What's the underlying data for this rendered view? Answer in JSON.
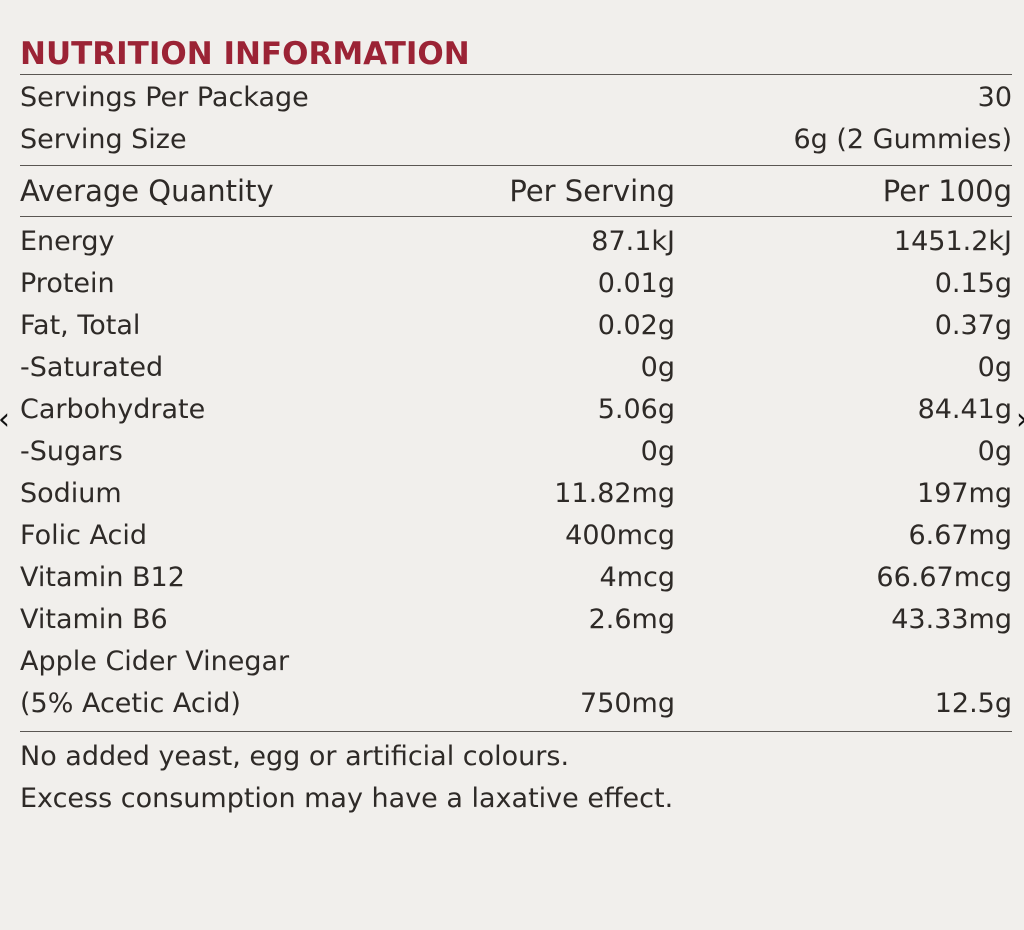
{
  "title": "NUTRITION INFORMATION",
  "servings": {
    "per_package_label": "Servings Per Package",
    "per_package_value": "30",
    "size_label": "Serving Size",
    "size_value": "6g (2 Gummies)"
  },
  "header": {
    "col1": "Average Quantity",
    "col2": "Per Serving",
    "col3": "Per 100g"
  },
  "rows": [
    {
      "name": "Energy",
      "per_serving": "87.1kJ",
      "per_100g": "1451.2kJ"
    },
    {
      "name": "Protein",
      "per_serving": "0.01g",
      "per_100g": "0.15g"
    },
    {
      "name": "Fat, Total",
      "per_serving": "0.02g",
      "per_100g": "0.37g"
    },
    {
      "name": "-Saturated",
      "per_serving": "0g",
      "per_100g": "0g"
    },
    {
      "name": "Carbohydrate",
      "per_serving": "5.06g",
      "per_100g": "84.41g"
    },
    {
      "name": "-Sugars",
      "per_serving": "0g",
      "per_100g": "0g"
    },
    {
      "name": "Sodium",
      "per_serving": "11.82mg",
      "per_100g": "197mg"
    },
    {
      "name": "Folic Acid",
      "per_serving": "400mcg",
      "per_100g": "6.67mg"
    },
    {
      "name": "Vitamin B12",
      "per_serving": "4mcg",
      "per_100g": "66.67mcg"
    },
    {
      "name": "Vitamin B6",
      "per_serving": "2.6mg",
      "per_100g": "43.33mg"
    }
  ],
  "acv": {
    "line1": "Apple Cider Vinegar",
    "line2": "(5% Acetic Acid)",
    "per_serving": "750mg",
    "per_100g": "12.5g"
  },
  "footer": {
    "line1": "No added yeast, egg or artificial colours.",
    "line2": "Excess consumption may have a laxative effect."
  },
  "nav": {
    "prev_icon": "chevron-left-icon",
    "next_icon": "chevron-right-icon"
  },
  "colors": {
    "title": "#9b2335",
    "text": "#2e2a27",
    "background": "#f1efec"
  }
}
